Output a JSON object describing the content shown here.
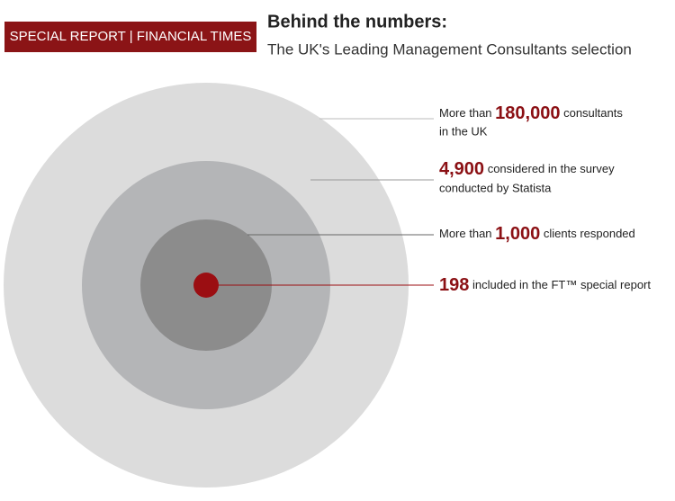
{
  "header": {
    "badge": "SPECIAL REPORT | FINANCIAL TIMES",
    "title": "Behind the numbers:",
    "subtitle": "The UK's Leading Management Consultants selection"
  },
  "rings": [
    {
      "prefix": "More than",
      "number": "180,000",
      "suffix": "consultants",
      "line2": "in the UK"
    },
    {
      "number": "4,900",
      "suffix": "considered in the survey",
      "line2": "conducted by Statista"
    },
    {
      "prefix": "More than",
      "number": "1,000",
      "suffix": "clients responded"
    },
    {
      "number": "198",
      "suffix": "included in the FT™ special report"
    }
  ]
}
